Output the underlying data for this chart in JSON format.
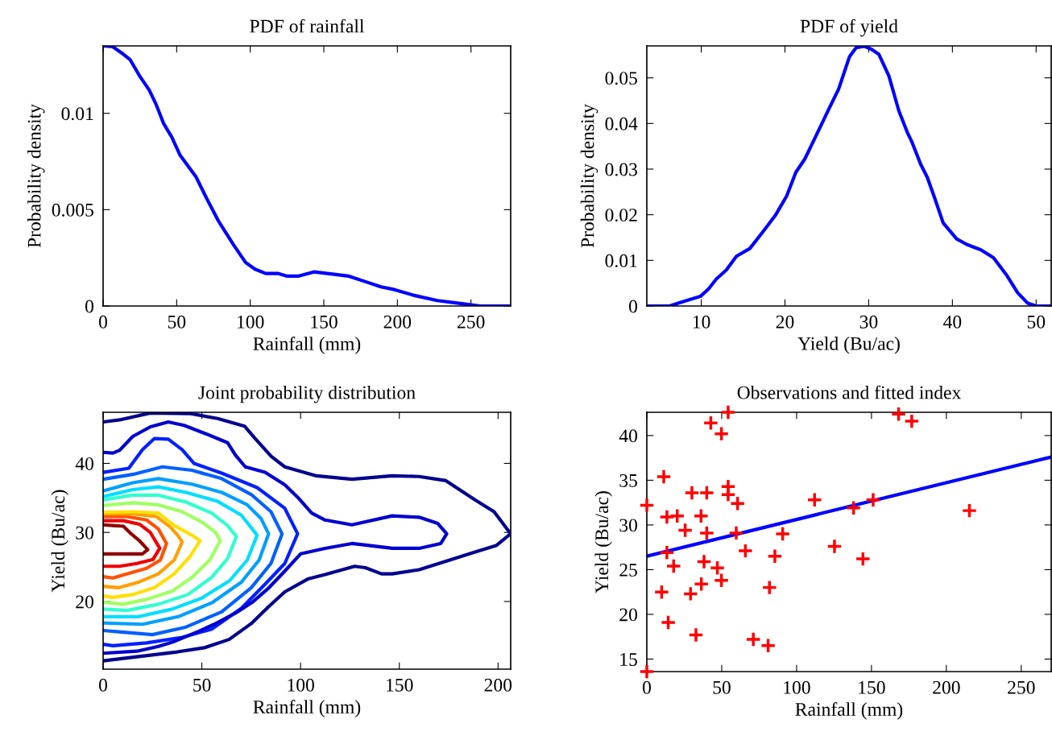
{
  "chart_data": [
    {
      "type": "line",
      "title": "PDF of rainfall",
      "xlabel": "Rainfall (mm)",
      "ylabel": "Probability density",
      "xlim": [
        0,
        277
      ],
      "ylim": [
        0,
        0.0135
      ],
      "xticks": [
        0,
        50,
        100,
        150,
        200,
        250
      ],
      "yticks": [
        0,
        0.005,
        0.01
      ],
      "series": [
        {
          "color": "#0000ff",
          "x": [
            0,
            6.6,
            13.9,
            18.4,
            24.8,
            31.2,
            35.7,
            41.2,
            46.7,
            52.2,
            63.1,
            70.4,
            78.6,
            88.6,
            96.8,
            103.2,
            110.5,
            118.7,
            125.1,
            132.4,
            143.3,
            152.4,
            167.0,
            178.0,
            188.9,
            198.0,
            210.8,
            227.2,
            241.8,
            256.4,
            277
          ],
          "values": [
            0.0135,
            0.01346,
            0.01306,
            0.01278,
            0.01194,
            0.01123,
            0.01052,
            0.00946,
            0.00876,
            0.00784,
            0.00671,
            0.00558,
            0.00438,
            0.00318,
            0.00226,
            0.00191,
            0.00169,
            0.00169,
            0.00155,
            0.00155,
            0.00177,
            0.00169,
            0.00155,
            0.00127,
            0.00099,
            0.00085,
            0.00056,
            0.00028,
            0.00014,
            0,
            0
          ]
        }
      ]
    },
    {
      "type": "line",
      "title": "PDF of yield",
      "xlabel": "Yield (Bu/ac)",
      "ylabel": "Probability density",
      "xlim": [
        3.5,
        51.8
      ],
      "ylim": [
        0,
        0.057
      ],
      "xticks": [
        10,
        20,
        30,
        40,
        50
      ],
      "yticks": [
        0,
        0.01,
        0.02,
        0.03,
        0.04,
        0.05
      ],
      "series": [
        {
          "color": "#0000ff",
          "x": [
            3.5,
            6.2,
            7.7,
            9.9,
            10.9,
            11.8,
            13.0,
            14.2,
            15.8,
            17.3,
            18.9,
            20.2,
            21.3,
            22.4,
            24.0,
            25.3,
            26.4,
            27.7,
            28.5,
            29.5,
            30.3,
            31.2,
            32.4,
            33.6,
            34.6,
            35.2,
            36.2,
            37.0,
            37.8,
            38.9,
            40.5,
            41.7,
            43.4,
            44.9,
            46.5,
            47.8,
            49.0,
            50.0,
            51.8
          ],
          "values": [
            0,
            0,
            0.0009,
            0.0021,
            0.0038,
            0.0059,
            0.0079,
            0.0109,
            0.0126,
            0.0161,
            0.02,
            0.0241,
            0.0293,
            0.0323,
            0.0384,
            0.0434,
            0.0475,
            0.0546,
            0.0566,
            0.0569,
            0.0563,
            0.0552,
            0.0505,
            0.0428,
            0.0381,
            0.0358,
            0.0311,
            0.0282,
            0.0241,
            0.0182,
            0.0147,
            0.0135,
            0.0123,
            0.0106,
            0.0067,
            0.0029,
            0.0006,
            0,
            0
          ]
        }
      ]
    },
    {
      "type": "line",
      "title": "Joint probability distribution",
      "xlabel": "Rainfall (mm)",
      "ylabel": "Yield (Bu/ac)",
      "xlim": [
        0,
        206.4
      ],
      "ylim": [
        10.2,
        47.4
      ],
      "xticks": [
        0,
        50,
        100,
        150,
        200
      ],
      "yticks": [
        20,
        30,
        40
      ],
      "series": [
        {
          "color": "#8f0000",
          "x": [
            0,
            4.9,
            10.3,
            14.2,
            18.4,
            22.6,
            19.9,
            13.0,
            0
          ],
          "values": [
            31.1,
            31.0,
            30.9,
            29.8,
            28.8,
            27.5,
            26.9,
            26.9,
            26.9
          ]
        },
        {
          "color": "#ef0000",
          "x": [
            0,
            10.3,
            18.4,
            23.9,
            28.7,
            25.3,
            17.1,
            8.3,
            0
          ],
          "values": [
            31.7,
            31.7,
            31.2,
            30.0,
            27.7,
            26.1,
            25.5,
            25.1,
            25.1
          ]
        },
        {
          "color": "#ff5000",
          "x": [
            0,
            12,
            22,
            28,
            32.1,
            29,
            22,
            12,
            5,
            0
          ],
          "values": [
            32.3,
            32.3,
            31.8,
            30.5,
            28.4,
            26.0,
            24.8,
            24.0,
            23.4,
            23.6
          ]
        },
        {
          "color": "#ff9f00",
          "x": [
            0,
            15,
            27,
            34,
            38,
            40.0,
            36,
            28,
            18,
            8,
            0
          ],
          "values": [
            32.7,
            32.7,
            32.3,
            30.8,
            29.5,
            28.6,
            26.0,
            24.0,
            22.8,
            22.0,
            22.2
          ]
        },
        {
          "color": "#ffdf00",
          "x": [
            0,
            15,
            28,
            36,
            45,
            49.1,
            44,
            36,
            26,
            15,
            5,
            0
          ],
          "values": [
            32.9,
            33.0,
            32.8,
            31.0,
            29.6,
            28.8,
            26.5,
            24.0,
            22.0,
            21.0,
            20.6,
            20.8
          ]
        },
        {
          "color": "#9fff60",
          "x": [
            0,
            15,
            28,
            40,
            50,
            57,
            59.3,
            54,
            45,
            35,
            22,
            10,
            0
          ],
          "values": [
            33.9,
            34.3,
            34.0,
            33.0,
            31.5,
            30.0,
            28.8,
            26.0,
            23.5,
            21.5,
            20.3,
            19.6,
            19.9
          ]
        },
        {
          "color": "#30ffcf",
          "x": [
            0,
            15,
            28,
            42,
            55,
            63,
            67.5,
            63,
            55,
            43,
            28,
            12,
            0
          ],
          "values": [
            34.7,
            35.4,
            35.4,
            34.4,
            32.8,
            31.0,
            29.4,
            26.2,
            23.5,
            21.0,
            19.6,
            18.7,
            18.9
          ]
        },
        {
          "color": "#00dfff",
          "x": [
            0,
            15,
            28,
            42,
            58,
            70,
            78,
            73,
            64,
            50,
            35,
            18,
            0
          ],
          "values": [
            35.2,
            36.2,
            36.6,
            35.8,
            34.5,
            32.5,
            29.6,
            26.0,
            23.0,
            20.5,
            18.9,
            17.8,
            17.8
          ]
        },
        {
          "color": "#009fff",
          "x": [
            0,
            15,
            28,
            45,
            60,
            73,
            80,
            83.8,
            79,
            70,
            55,
            38,
            20,
            0
          ],
          "values": [
            36.0,
            37.2,
            37.8,
            37.0,
            35.8,
            34.0,
            32.0,
            29.8,
            26.0,
            22.8,
            19.8,
            17.8,
            16.7,
            16.9
          ]
        },
        {
          "color": "#0060ff",
          "x": [
            0,
            15,
            30,
            45,
            60,
            75,
            85,
            90.6,
            85,
            75,
            60,
            42,
            25,
            8,
            0
          ],
          "values": [
            37.7,
            38.4,
            39.5,
            39.0,
            37.8,
            35.5,
            33.0,
            29.8,
            25.5,
            22.0,
            18.5,
            16.3,
            15.2,
            15.6,
            15.8
          ]
        },
        {
          "color": "#0020ff",
          "x": [
            0,
            13,
            20,
            26,
            33,
            40,
            46,
            60,
            78,
            92,
            98.5,
            92,
            82,
            70,
            55,
            40,
            22,
            5,
            0
          ],
          "values": [
            38.7,
            39.3,
            42.0,
            43.6,
            43.5,
            42.0,
            40.0,
            38.6,
            36.5,
            33.5,
            29.8,
            25.5,
            22.5,
            19.0,
            16.0,
            14.8,
            14.0,
            13.6,
            13.8
          ]
        },
        {
          "color": "#0000cf",
          "x": [
            0,
            5,
            8.4,
            15,
            24,
            33,
            41,
            51,
            63,
            67,
            72,
            82,
            92,
            98.5,
            105.6,
            112.4,
            126,
            146.4,
            160,
            169.5,
            174,
            171,
            160,
            146.4,
            126,
            112.4,
            100,
            92,
            84,
            75.6,
            67.5,
            57,
            48.5,
            36,
            28,
            17.1,
            0
          ],
          "values": [
            41.6,
            41.5,
            41.9,
            43.9,
            45.3,
            46.0,
            45.5,
            44.4,
            43.0,
            41.2,
            39.5,
            38.7,
            36.9,
            35.1,
            32.8,
            31.8,
            31.1,
            32.4,
            32.2,
            31.3,
            29.8,
            28.4,
            27.7,
            27.7,
            28.4,
            27.7,
            26.9,
            24.4,
            22.0,
            19.9,
            18.4,
            16.8,
            15.7,
            14.2,
            13.5,
            12.8,
            12.5
          ]
        },
        {
          "color": "#00008f",
          "x": [
            0,
            8.3,
            23.9,
            44.4,
            58,
            71.6,
            77,
            85.2,
            92,
            108,
            126,
            146.4,
            160,
            173.6,
            188.5,
            198,
            206.4,
            199,
            190,
            160,
            146.4,
            141,
            132.8,
            127.4,
            112.4,
            104,
            92,
            84,
            75,
            63.8,
            51.2,
            37.6,
            17.1,
            0
          ],
          "values": [
            46.0,
            46.3,
            47.3,
            47.2,
            46.5,
            45.4,
            43.6,
            41.0,
            39.5,
            38.2,
            37.7,
            38.2,
            38.1,
            37.5,
            34.7,
            33.0,
            29.8,
            28.1,
            27.3,
            24.6,
            24.0,
            24.0,
            24.9,
            25.1,
            23.9,
            23.3,
            21.4,
            19.3,
            16.8,
            14.5,
            13.3,
            12.7,
            12.0,
            11.4
          ]
        }
      ]
    },
    {
      "type": "scatter",
      "title": "Observations and fitted index",
      "xlabel": "Rainfall (mm)",
      "ylabel": "Yield (Bu/ac)",
      "xlim": [
        0,
        270
      ],
      "ylim": [
        13.6,
        42.6
      ],
      "xticks": [
        0,
        50,
        100,
        150,
        200,
        250
      ],
      "yticks": [
        15,
        20,
        25,
        30,
        35,
        40
      ],
      "series": [
        {
          "type": "scatter",
          "marker": "cross",
          "color": "#ff0000",
          "x": [
            0,
            0,
            54.3,
            42.7,
            49.8,
            168.1,
            176.9,
            11.3,
            54.3,
            54.3,
            30.1,
            40.0,
            60.6,
            112.0,
            138.0,
            151.1,
            215.4,
            13.4,
            20.3,
            36.2,
            25.6,
            40.0,
            59.7,
            90.7,
            125.3,
            13.4,
            65.8,
            85.5,
            144.3,
            17.9,
            38.2,
            47.1,
            9.9,
            29.2,
            36.4,
            49.8,
            81.9,
            14.3,
            32.8,
            71.1,
            81.0
          ],
          "values": [
            13.6,
            32.2,
            42.6,
            41.4,
            40.2,
            42.4,
            41.6,
            35.4,
            34.3,
            33.4,
            33.6,
            33.6,
            32.4,
            32.8,
            31.9,
            32.8,
            31.6,
            30.9,
            31.0,
            31.0,
            29.4,
            29.1,
            29.1,
            29.0,
            27.6,
            26.9,
            27.1,
            26.5,
            26.2,
            25.4,
            25.9,
            25.2,
            22.5,
            22.3,
            23.4,
            23.8,
            23.0,
            19.1,
            17.7,
            17.2,
            16.5
          ]
        },
        {
          "type": "line",
          "color": "#0000ff",
          "x": [
            0,
            270
          ],
          "values": [
            26.5,
            37.6
          ]
        }
      ]
    }
  ]
}
